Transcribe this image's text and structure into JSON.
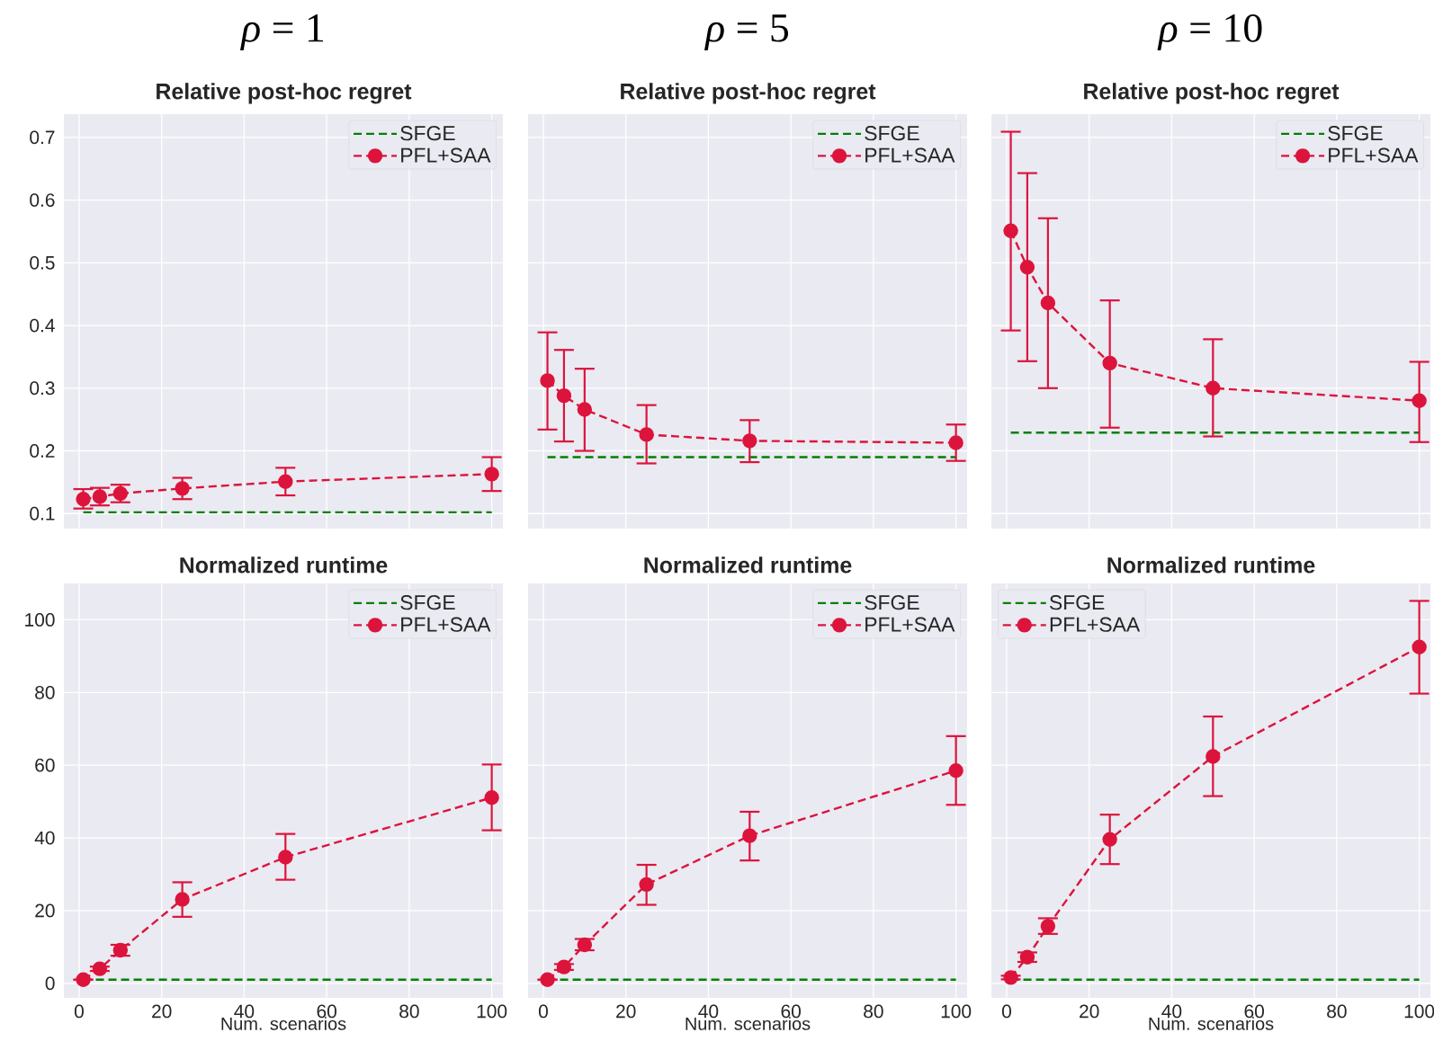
{
  "chart_data": [
    {
      "type": "line",
      "title": "*ρ* = 1",
      "subtitle": "Relative post-hoc regret",
      "x": [
        1,
        5,
        10,
        25,
        50,
        100
      ],
      "xlim": [
        -3.7,
        102.7
      ],
      "ylim": [
        0.076,
        0.737
      ],
      "xticks": [
        0,
        20,
        40,
        60,
        80,
        100
      ],
      "yticks": [
        0.1,
        0.2,
        0.3,
        0.4,
        0.5,
        0.6,
        0.7
      ],
      "grid": true,
      "legend": "top right",
      "tick_labels": "y",
      "series": [
        {
          "name": "SFGE",
          "color": "#008000",
          "values": [
            0.102,
            0.102,
            0.102,
            0.102,
            0.102,
            0.102
          ],
          "marker": "none",
          "line_style": "dashed"
        },
        {
          "name": "PFL+SAA",
          "color": "#dc143c",
          "values": [
            0.123,
            0.127,
            0.132,
            0.14,
            0.151,
            0.163
          ],
          "errors": [
            [
              0.108,
              0.139
            ],
            [
              0.113,
              0.141
            ],
            [
              0.118,
              0.146
            ],
            [
              0.123,
              0.157
            ],
            [
              0.129,
              0.173
            ],
            [
              0.136,
              0.19
            ]
          ],
          "marker": "circle",
          "line_style": "dashed"
        }
      ]
    },
    {
      "type": "line",
      "title": "*ρ* = 5",
      "subtitle": "Relative post-hoc regret",
      "x": [
        1,
        5,
        10,
        25,
        50,
        100
      ],
      "xlim": [
        -3.7,
        102.7
      ],
      "ylim": [
        0.076,
        0.737
      ],
      "xticks": [
        0,
        20,
        40,
        60,
        80,
        100
      ],
      "yticks": [
        0.1,
        0.2,
        0.3,
        0.4,
        0.5,
        0.6,
        0.7
      ],
      "grid": true,
      "legend": "top right",
      "tick_labels": false,
      "series": [
        {
          "name": "SFGE",
          "color": "#008000",
          "values": [
            0.19,
            0.19,
            0.19,
            0.19,
            0.19,
            0.19
          ],
          "marker": "none",
          "line_style": "dashed"
        },
        {
          "name": "PFL+SAA",
          "color": "#dc143c",
          "values": [
            0.312,
            0.288,
            0.266,
            0.226,
            0.216,
            0.213
          ],
          "errors": [
            [
              0.234,
              0.389
            ],
            [
              0.215,
              0.361
            ],
            [
              0.2,
              0.331
            ],
            [
              0.18,
              0.273
            ],
            [
              0.182,
              0.249
            ],
            [
              0.184,
              0.242
            ]
          ],
          "marker": "circle",
          "line_style": "dashed"
        }
      ]
    },
    {
      "type": "line",
      "title": "*ρ* = 10",
      "subtitle": "Relative post-hoc regret",
      "x": [
        1,
        5,
        10,
        25,
        50,
        100
      ],
      "xlim": [
        -3.7,
        102.7
      ],
      "ylim": [
        0.076,
        0.737
      ],
      "xticks": [
        0,
        20,
        40,
        60,
        80,
        100
      ],
      "yticks": [
        0.1,
        0.2,
        0.3,
        0.4,
        0.5,
        0.6,
        0.7
      ],
      "grid": true,
      "legend": "top right",
      "tick_labels": false,
      "series": [
        {
          "name": "SFGE",
          "color": "#008000",
          "values": [
            0.229,
            0.229,
            0.229,
            0.229,
            0.229,
            0.229
          ],
          "marker": "none",
          "line_style": "dashed"
        },
        {
          "name": "PFL+SAA",
          "color": "#dc143c",
          "values": [
            0.551,
            0.493,
            0.436,
            0.34,
            0.3,
            0.28
          ],
          "errors": [
            [
              0.392,
              0.709
            ],
            [
              0.343,
              0.643
            ],
            [
              0.3,
              0.571
            ],
            [
              0.237,
              0.44
            ],
            [
              0.223,
              0.378
            ],
            [
              0.214,
              0.342
            ]
          ],
          "marker": "circle",
          "line_style": "dashed"
        }
      ]
    },
    {
      "type": "line",
      "title": "Normalized runtime",
      "xlabel": "Num. scenarios",
      "x": [
        1,
        5,
        10,
        25,
        50,
        100
      ],
      "xlim": [
        -3.7,
        102.7
      ],
      "ylim": [
        -4,
        110
      ],
      "xticks": [
        0,
        20,
        40,
        60,
        80,
        100
      ],
      "yticks": [
        0,
        20,
        40,
        60,
        80,
        100
      ],
      "grid": true,
      "legend": "top right",
      "series": [
        {
          "name": "SFGE",
          "color": "#008000",
          "values": [
            1,
            1,
            1,
            1,
            1,
            1
          ],
          "marker": "none",
          "line_style": "dashed"
        },
        {
          "name": "PFL+SAA",
          "color": "#dc143c",
          "values": [
            1,
            4,
            9.1,
            23.1,
            34.7,
            51.1
          ],
          "errors": [
            null,
            0.6,
            [
              7.6,
              10.6
            ],
            [
              18.3,
              27.8
            ],
            [
              28.5,
              41.1
            ],
            [
              42.1,
              60.2
            ]
          ],
          "marker": "circle",
          "line_style": "dashed"
        }
      ]
    },
    {
      "type": "line",
      "title": "Normalized runtime",
      "xlabel": "Num. scenarios",
      "x": [
        1,
        5,
        10,
        25,
        50,
        100
      ],
      "xlim": [
        -3.7,
        102.7
      ],
      "ylim": [
        -4,
        110
      ],
      "xticks": [
        0,
        20,
        40,
        60,
        80,
        100
      ],
      "yticks": [
        0,
        20,
        40,
        60,
        80,
        100
      ],
      "grid": true,
      "legend": "top right",
      "tick_labels": "x",
      "series": [
        {
          "name": "SFGE",
          "color": "#008000",
          "values": [
            1,
            1,
            1,
            1,
            1,
            1
          ],
          "marker": "none",
          "line_style": "dashed"
        },
        {
          "name": "PFL+SAA",
          "color": "#dc143c",
          "values": [
            1,
            4.5,
            10.6,
            27.2,
            40.6,
            58.5
          ],
          "errors": [
            null,
            0.8,
            [
              9.1,
              12.2
            ],
            [
              21.6,
              32.6
            ],
            [
              33.8,
              47.2
            ],
            [
              49.1,
              68
            ]
          ],
          "marker": "circle",
          "line_style": "dashed"
        }
      ]
    },
    {
      "type": "line",
      "title": "Normalized runtime",
      "xlabel": "Num. scenarios",
      "x": [
        1,
        5,
        10,
        25,
        50,
        100
      ],
      "xlim": [
        -3.7,
        102.7
      ],
      "ylim": [
        -4,
        110
      ],
      "xticks": [
        0,
        20,
        40,
        60,
        80,
        100
      ],
      "yticks": [
        0,
        20,
        40,
        60,
        80,
        100
      ],
      "grid": true,
      "legend": "top left",
      "tick_labels": "x",
      "series": [
        {
          "name": "SFGE",
          "color": "#008000",
          "values": [
            1,
            1,
            1,
            1,
            1,
            1
          ],
          "marker": "none",
          "line_style": "dashed"
        },
        {
          "name": "PFL+SAA",
          "color": "#dc143c",
          "values": [
            1.6,
            7.2,
            15.7,
            39.6,
            62.4,
            92.5
          ],
          "errors": [
            0.5,
            [
              5.9,
              8.5
            ],
            [
              13.6,
              17.9
            ],
            [
              32.8,
              46.4
            ],
            [
              51.5,
              73.4
            ],
            [
              79.7,
              105.2
            ]
          ],
          "marker": "circle",
          "line_style": "dashed"
        }
      ]
    }
  ]
}
